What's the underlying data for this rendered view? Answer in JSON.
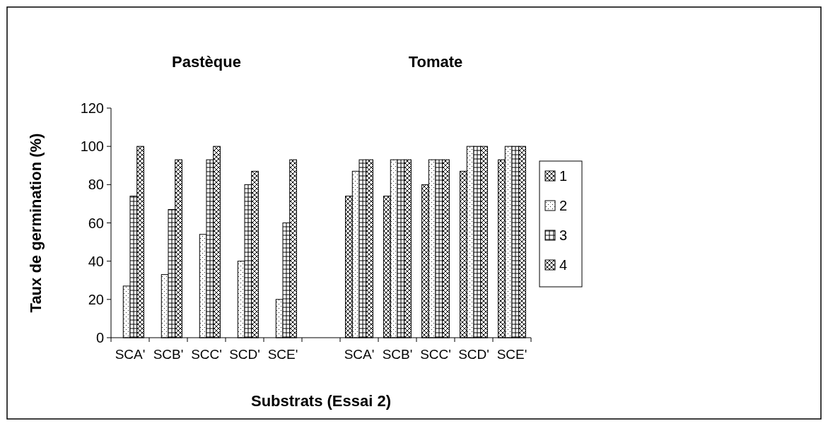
{
  "chart_data": {
    "type": "bar",
    "xlabel": "Substrats (Essai 2)",
    "ylabel": "Taux de germination (%)",
    "annotations": [
      "Pastèque",
      "Tomate"
    ],
    "categories": [
      "SCA'",
      "SCB'",
      "SCC'",
      "SCD'",
      "SCE'",
      null,
      "SCA'",
      "SCB'",
      "SCC'",
      "SCD'",
      "SCE'"
    ],
    "ylim": [
      0,
      120
    ],
    "yticks": [
      0,
      20,
      40,
      60,
      80,
      100,
      120
    ],
    "grid": false,
    "legend": "right",
    "series": [
      {
        "name": "1",
        "color": "#000000",
        "values": [
          0,
          0,
          0,
          0,
          0,
          null,
          74,
          74,
          80,
          87,
          93
        ]
      },
      {
        "name": "2",
        "color": "#000000",
        "values": [
          27,
          33,
          54,
          40,
          20,
          null,
          87,
          93,
          93,
          100,
          100
        ]
      },
      {
        "name": "3",
        "color": "#000000",
        "values": [
          74,
          67,
          93,
          80,
          60,
          null,
          93,
          93,
          93,
          100,
          100
        ]
      },
      {
        "name": "4",
        "color": "#000000",
        "values": [
          100,
          93,
          100,
          87,
          93,
          null,
          93,
          93,
          93,
          100,
          100
        ]
      }
    ]
  }
}
